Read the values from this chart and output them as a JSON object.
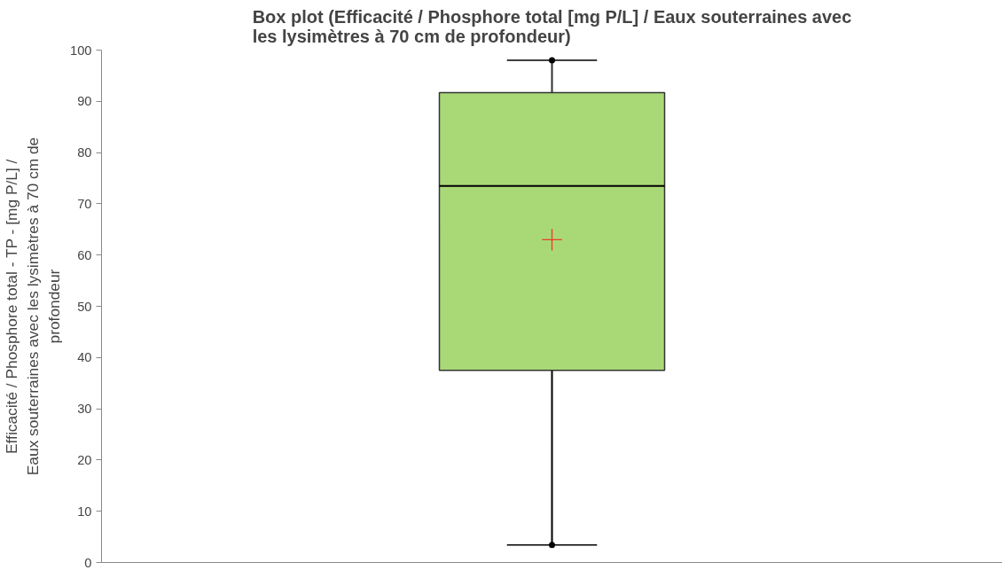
{
  "chart_data": {
    "type": "box",
    "title": "Box plot (Efficacité / Phosphore total [mg P/L] / Eaux souterraines avec les lysimètres à 70 cm de profondeur)",
    "ylabel": "Efficacité / Phosphore total - TP - [mg P/L] / Eaux souterraines avec les lysimètres à 70 cm de profondeur",
    "categories": [
      null
    ],
    "color": "#a9d977",
    "boxes": [
      {
        "low": 3.4,
        "q1": 37.5,
        "median": 73.5,
        "q3": 91.7,
        "high": 98.0,
        "mean": 63.0
      }
    ],
    "ylim": [
      0,
      100
    ],
    "yticks": [
      0,
      10,
      20,
      30,
      40,
      50,
      60,
      70,
      80,
      90,
      100
    ],
    "grid": false,
    "marker": "cross"
  }
}
